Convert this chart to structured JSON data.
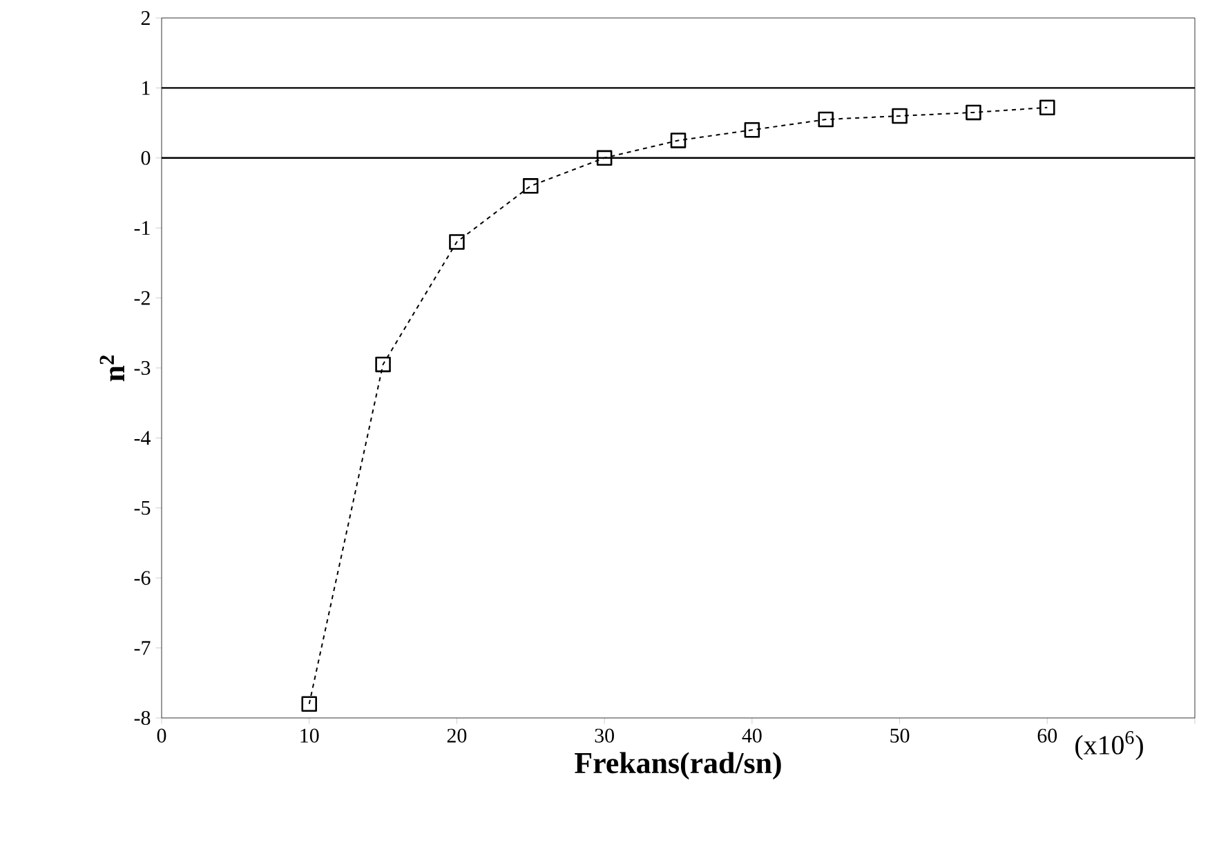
{
  "chart_data": {
    "type": "line",
    "xlabel": "Frekans(rad/sn)",
    "ylabel": "n$^{2}$",
    "annotations": [
      "(x10$^{6}$)"
    ],
    "x": [
      10,
      15,
      20,
      25,
      30,
      35,
      40,
      45,
      50,
      55,
      60
    ],
    "series": [
      {
        "color": "#000000",
        "values": [
          -7.8,
          -2.95,
          -1.2,
          -0.4,
          0.0,
          0.25,
          0.4,
          0.55,
          0.6,
          0.65,
          0.72
        ]
      }
    ],
    "xlim": [
      0,
      70
    ],
    "ylim": [
      -8,
      2
    ],
    "xticks": [
      0,
      10,
      20,
      30,
      40,
      50,
      60,
      {
        "value": 70,
        "label": null
      }
    ],
    "yticks": [
      -8,
      -7,
      -6,
      -5,
      -4,
      -3,
      -2,
      -1,
      0,
      1,
      2
    ],
    "ref_lines": [
      {
        "axis": "y",
        "value": 1,
        "color": "#000000"
      },
      {
        "axis": "y",
        "value": 0,
        "color": "#000000"
      }
    ],
    "marker": "square",
    "line_style": "dashed"
  }
}
